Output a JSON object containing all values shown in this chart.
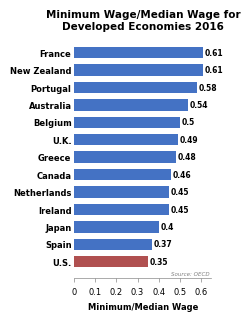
{
  "title": "Minimum Wage/Median Wage for\nDeveloped Economies 2016",
  "xlabel": "Minimum/Median Wage",
  "countries": [
    "France",
    "New Zealand",
    "Portugal",
    "Australia",
    "Belgium",
    "U.K.",
    "Greece",
    "Canada",
    "Netherlands",
    "Ireland",
    "Japan",
    "Spain",
    "U.S."
  ],
  "values": [
    0.61,
    0.61,
    0.58,
    0.54,
    0.5,
    0.49,
    0.48,
    0.46,
    0.45,
    0.45,
    0.4,
    0.37,
    0.35
  ],
  "bar_colors": [
    "#4472C4",
    "#4472C4",
    "#4472C4",
    "#4472C4",
    "#4472C4",
    "#4472C4",
    "#4472C4",
    "#4472C4",
    "#4472C4",
    "#4472C4",
    "#4472C4",
    "#4472C4",
    "#B05050"
  ],
  "xlim": [
    0,
    0.65
  ],
  "xticks": [
    0,
    0.1,
    0.2,
    0.3,
    0.4,
    0.5,
    0.6
  ],
  "xtick_labels": [
    "0",
    "0.1",
    "0.2",
    "0.3",
    "0.4",
    "0.5",
    "0.6"
  ],
  "source_text": "Source: OECD",
  "background_color": "#FFFFFF",
  "title_fontsize": 7.5,
  "label_fontsize": 6.0,
  "value_fontsize": 5.5,
  "axis_fontsize": 6.0
}
